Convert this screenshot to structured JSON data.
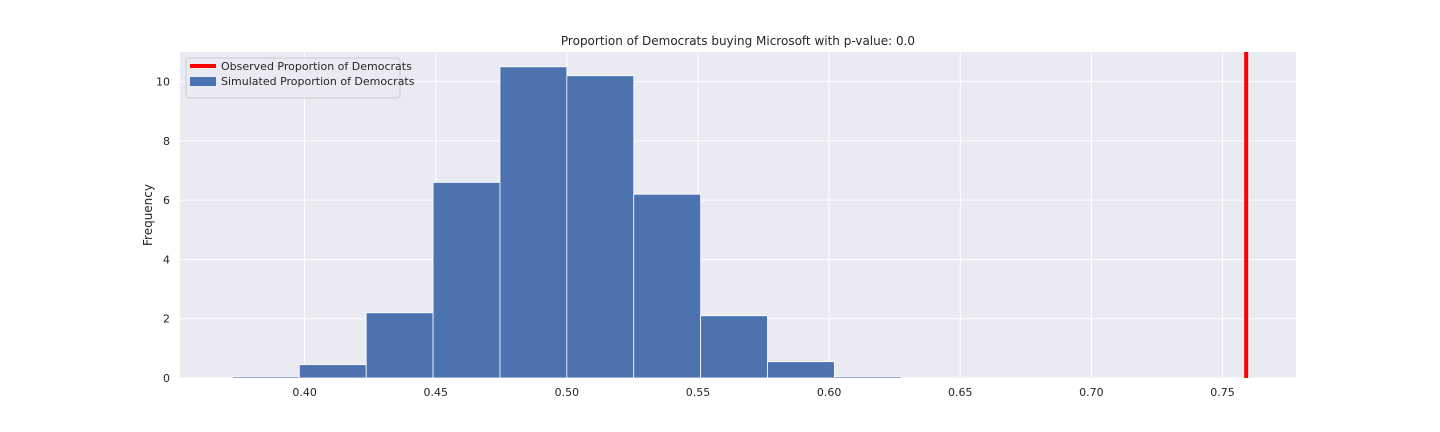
{
  "chart_data": {
    "type": "bar",
    "title": "Proportion of Democrats buying Microsoft with p-value: 0.0",
    "xlabel": "",
    "ylabel": "Frequency",
    "xlim": [
      0.3525,
      0.778
    ],
    "ylim": [
      0,
      11
    ],
    "xticks": [
      "0.40",
      "0.45",
      "0.50",
      "0.55",
      "0.60",
      "0.65",
      "0.70",
      "0.75"
    ],
    "xtick_values": [
      0.4,
      0.45,
      0.5,
      0.55,
      0.6,
      0.65,
      0.7,
      0.75
    ],
    "yticks": [
      "0",
      "2",
      "4",
      "6",
      "8",
      "10"
    ],
    "ytick_values": [
      0,
      2,
      4,
      6,
      8,
      10
    ],
    "grid": true,
    "legend_position": "top-left",
    "histogram": {
      "name": "Simulated Proportion of Democrats",
      "color": "#4c72b0",
      "bin_edges": [
        0.3725,
        0.398,
        0.4235,
        0.449,
        0.4745,
        0.5,
        0.5255,
        0.551,
        0.5765,
        0.602,
        0.6275
      ],
      "values": [
        0.05,
        0.45,
        2.2,
        6.6,
        10.5,
        10.2,
        6.2,
        2.1,
        0.55,
        0.05
      ]
    },
    "observed_line": {
      "name": "Observed Proportion of Democrats",
      "x": 0.759,
      "color": "#ff0000"
    },
    "background_color": "#eaeaf2",
    "grid_color": "#ffffff"
  }
}
